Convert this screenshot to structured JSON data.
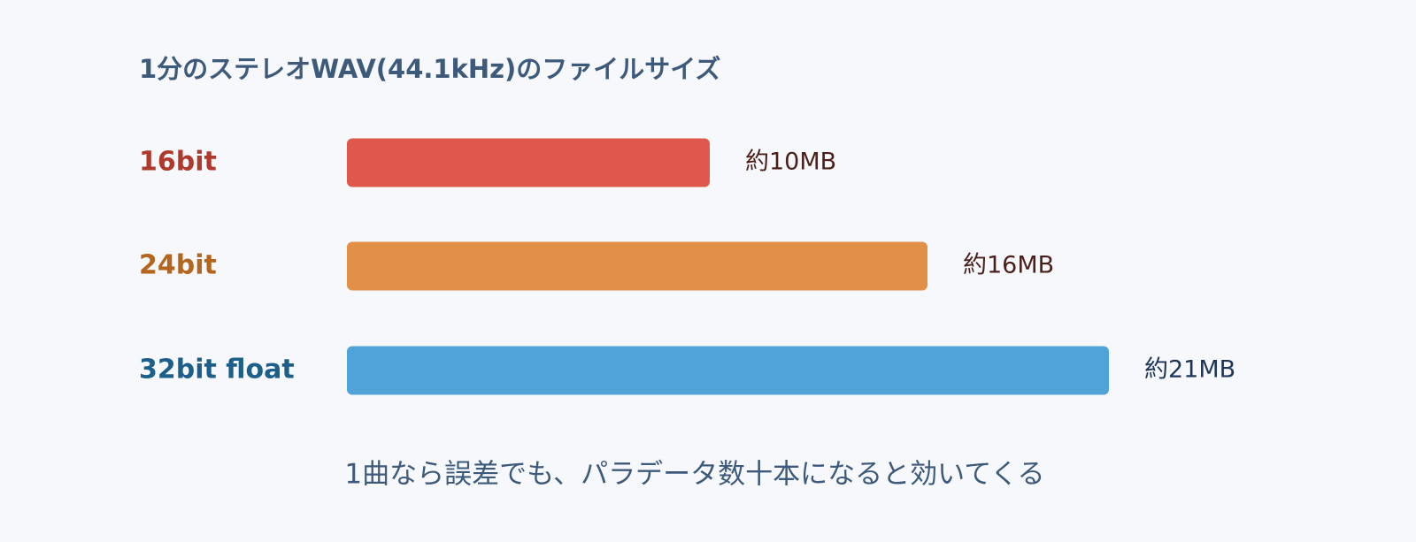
{
  "chart_data": {
    "type": "hbar",
    "title": "1分のステレオWAV(44.1kHz)のファイルサイズ",
    "categories": [
      "16bit",
      "24bit",
      "32bit float"
    ],
    "values": [
      10,
      16,
      21
    ],
    "value_labels": [
      "約10MB",
      "約16MB",
      "約21MB"
    ],
    "colors": [
      "#e0574b",
      "#e28f48",
      "#4fa3d8"
    ],
    "note": "1曲なら誤差でも、パラデータ数十本になると効いてくる"
  }
}
